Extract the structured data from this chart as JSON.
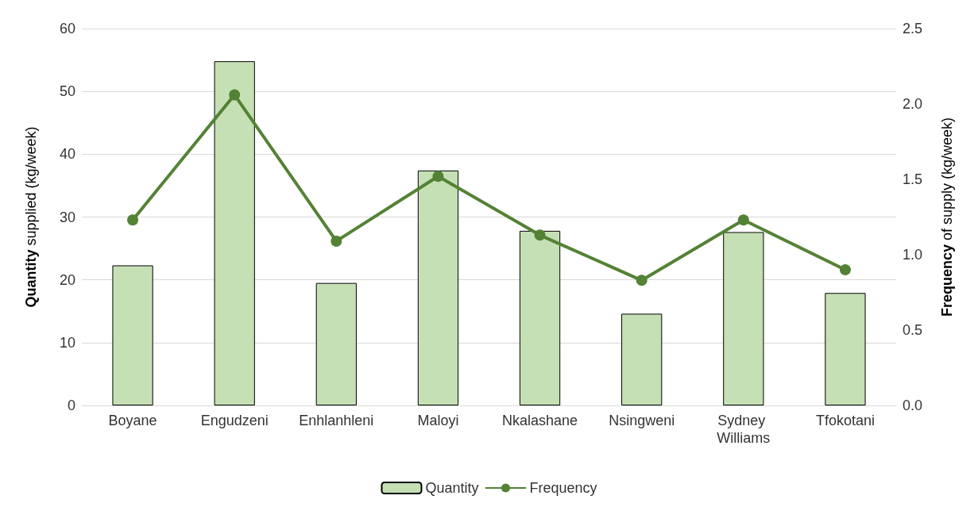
{
  "chart_data": {
    "type": "bar",
    "categories": [
      "Boyane",
      "Engudzeni",
      "Enhlanhleni",
      "Maloyi",
      "Nkalashane",
      "Nsingweni",
      "Sydney Williams",
      "Tfokotani"
    ],
    "series": [
      {
        "name": "Quantity",
        "color": "#c5e0b4",
        "values": [
          22.3,
          54.8,
          19.5,
          37.4,
          27.8,
          14.6,
          27.6,
          17.9
        ]
      },
      {
        "name": "Frequency",
        "type": "line",
        "axis": "y2",
        "color": "#548235",
        "marker": "circle",
        "line_style": "solid",
        "values": [
          1.23,
          2.06,
          1.09,
          1.52,
          1.13,
          0.83,
          1.23,
          0.9
        ]
      }
    ],
    "ylabel": "Quantity supplied (kg/week)",
    "y2label": "Frequency of supply (kg/week)",
    "ylim": [
      0,
      60
    ],
    "yticks": [
      0,
      10,
      20,
      30,
      40,
      50,
      60
    ],
    "y2lim": [
      0,
      2.5
    ],
    "y2ticks": [
      {
        "value": 0,
        "label": "0.0"
      },
      {
        "value": 0.5,
        "label": "0.5"
      },
      {
        "value": 1,
        "label": "1.0"
      },
      {
        "value": 1.5,
        "label": "1.5"
      },
      {
        "value": 2,
        "label": "2.0"
      },
      {
        "value": 2.5,
        "label": "2.5"
      }
    ],
    "grid": "y",
    "legend": "bottom"
  }
}
